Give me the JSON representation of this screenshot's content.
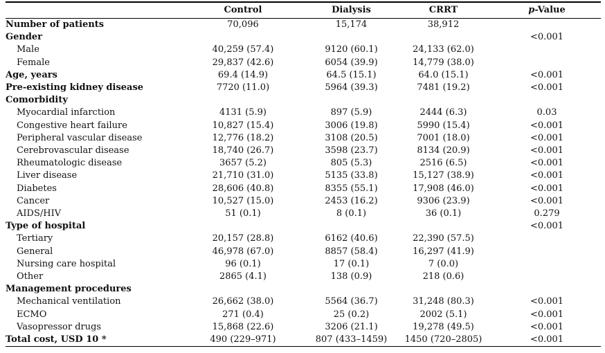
{
  "table": {
    "header": {
      "col0": "",
      "col1": "Control",
      "col2": "Dialysis",
      "col3": "CRRT",
      "col4_italic": "p",
      "col4_rest": "-Value"
    },
    "rows": [
      {
        "label": "Number of patients",
        "type": "hdr",
        "c1": "70,096",
        "c2": "15,174",
        "c3": "38,912",
        "p": ""
      },
      {
        "label": "Gender",
        "type": "hdr",
        "c1": "",
        "c2": "",
        "c3": "",
        "p": "<0.001"
      },
      {
        "label": "Male",
        "type": "sub",
        "c1": "40,259 (57.4)",
        "c2": "9120 (60.1)",
        "c3": "24,133 (62.0)",
        "p": ""
      },
      {
        "label": "Female",
        "type": "sub",
        "c1": "29,837 (42.6)",
        "c2": "6054 (39.9)",
        "c3": "14,779 (38.0)",
        "p": ""
      },
      {
        "label": "Age, years",
        "type": "hdr",
        "c1": "69.4 (14.9)",
        "c2": "64.5 (15.1)",
        "c3": "64.0 (15.1)",
        "p": "<0.001"
      },
      {
        "label": "Pre-existing kidney disease",
        "type": "hdr",
        "c1": "7720 (11.0)",
        "c2": "5964 (39.3)",
        "c3": "7481 (19.2)",
        "p": "<0.001"
      },
      {
        "label": "Comorbidity",
        "type": "hdr",
        "c1": "",
        "c2": "",
        "c3": "",
        "p": ""
      },
      {
        "label": "Myocardial infarction",
        "type": "sub",
        "c1": "4131 (5.9)",
        "c2": "897 (5.9)",
        "c3": "2444 (6.3)",
        "p": "0.03"
      },
      {
        "label": "Congestive heart failure",
        "type": "sub",
        "c1": "10,827 (15.4)",
        "c2": "3006 (19.8)",
        "c3": "5990 (15.4)",
        "p": "<0.001"
      },
      {
        "label": "Peripheral vascular disease",
        "type": "sub",
        "c1": "12,776 (18.2)",
        "c2": "3108 (20.5)",
        "c3": "7001 (18.0)",
        "p": "<0.001"
      },
      {
        "label": "Cerebrovascular disease",
        "type": "sub",
        "c1": "18,740 (26.7)",
        "c2": "3598 (23.7)",
        "c3": "8134 (20.9)",
        "p": "<0.001"
      },
      {
        "label": "Rheumatologic disease",
        "type": "sub",
        "c1": "3657 (5.2)",
        "c2": "805 (5.3)",
        "c3": "2516 (6.5)",
        "p": "<0.001"
      },
      {
        "label": "Liver disease",
        "type": "sub",
        "c1": "21,710 (31.0)",
        "c2": "5135 (33.8)",
        "c3": "15,127 (38.9)",
        "p": "<0.001"
      },
      {
        "label": "Diabetes",
        "type": "sub",
        "c1": "28,606 (40.8)",
        "c2": "8355 (55.1)",
        "c3": "17,908 (46.0)",
        "p": "<0.001"
      },
      {
        "label": "Cancer",
        "type": "sub",
        "c1": "10,527 (15.0)",
        "c2": "2453 (16.2)",
        "c3": "9306 (23.9)",
        "p": "<0.001"
      },
      {
        "label": "AIDS/HIV",
        "type": "sub",
        "c1": "51 (0.1)",
        "c2": "8 (0.1)",
        "c3": "36 (0.1)",
        "p": "0.279"
      },
      {
        "label": "Type of hospital",
        "type": "hdr",
        "c1": "",
        "c2": "",
        "c3": "",
        "p": "<0.001"
      },
      {
        "label": "Tertiary",
        "type": "sub",
        "c1": "20,157 (28.8)",
        "c2": "6162 (40.6)",
        "c3": "22,390 (57.5)",
        "p": ""
      },
      {
        "label": "General",
        "type": "sub",
        "c1": "46,978 (67.0)",
        "c2": "8857 (58.4)",
        "c3": "16,297 (41.9)",
        "p": ""
      },
      {
        "label": "Nursing care hospital",
        "type": "sub",
        "c1": "96 (0.1)",
        "c2": "17 (0.1)",
        "c3": "7 (0.0)",
        "p": ""
      },
      {
        "label": "Other",
        "type": "sub",
        "c1": "2865 (4.1)",
        "c2": "138 (0.9)",
        "c3": "218 (0.6)",
        "p": ""
      },
      {
        "label": "Management procedures",
        "type": "hdr",
        "c1": "",
        "c2": "",
        "c3": "",
        "p": ""
      },
      {
        "label": "Mechanical ventilation",
        "type": "sub",
        "c1": "26,662 (38.0)",
        "c2": "5564 (36.7)",
        "c3": "31,248 (80.3)",
        "p": "<0.001"
      },
      {
        "label": "ECMO",
        "type": "sub",
        "c1": "271 (0.4)",
        "c2": "25 (0.2)",
        "c3": "2002 (5.1)",
        "p": "<0.001"
      },
      {
        "label": "Vasopressor drugs",
        "type": "sub",
        "c1": "15,868 (22.6)",
        "c2": "3206 (21.1)",
        "c3": "19,278 (49.5)",
        "p": "<0.001"
      },
      {
        "label": "Total cost, USD 10 *",
        "type": "hdr",
        "c1": "490 (229–971)",
        "c2": "807 (433–1459)",
        "c3": "1450 (720–2805)",
        "p": "<0.001"
      }
    ]
  }
}
